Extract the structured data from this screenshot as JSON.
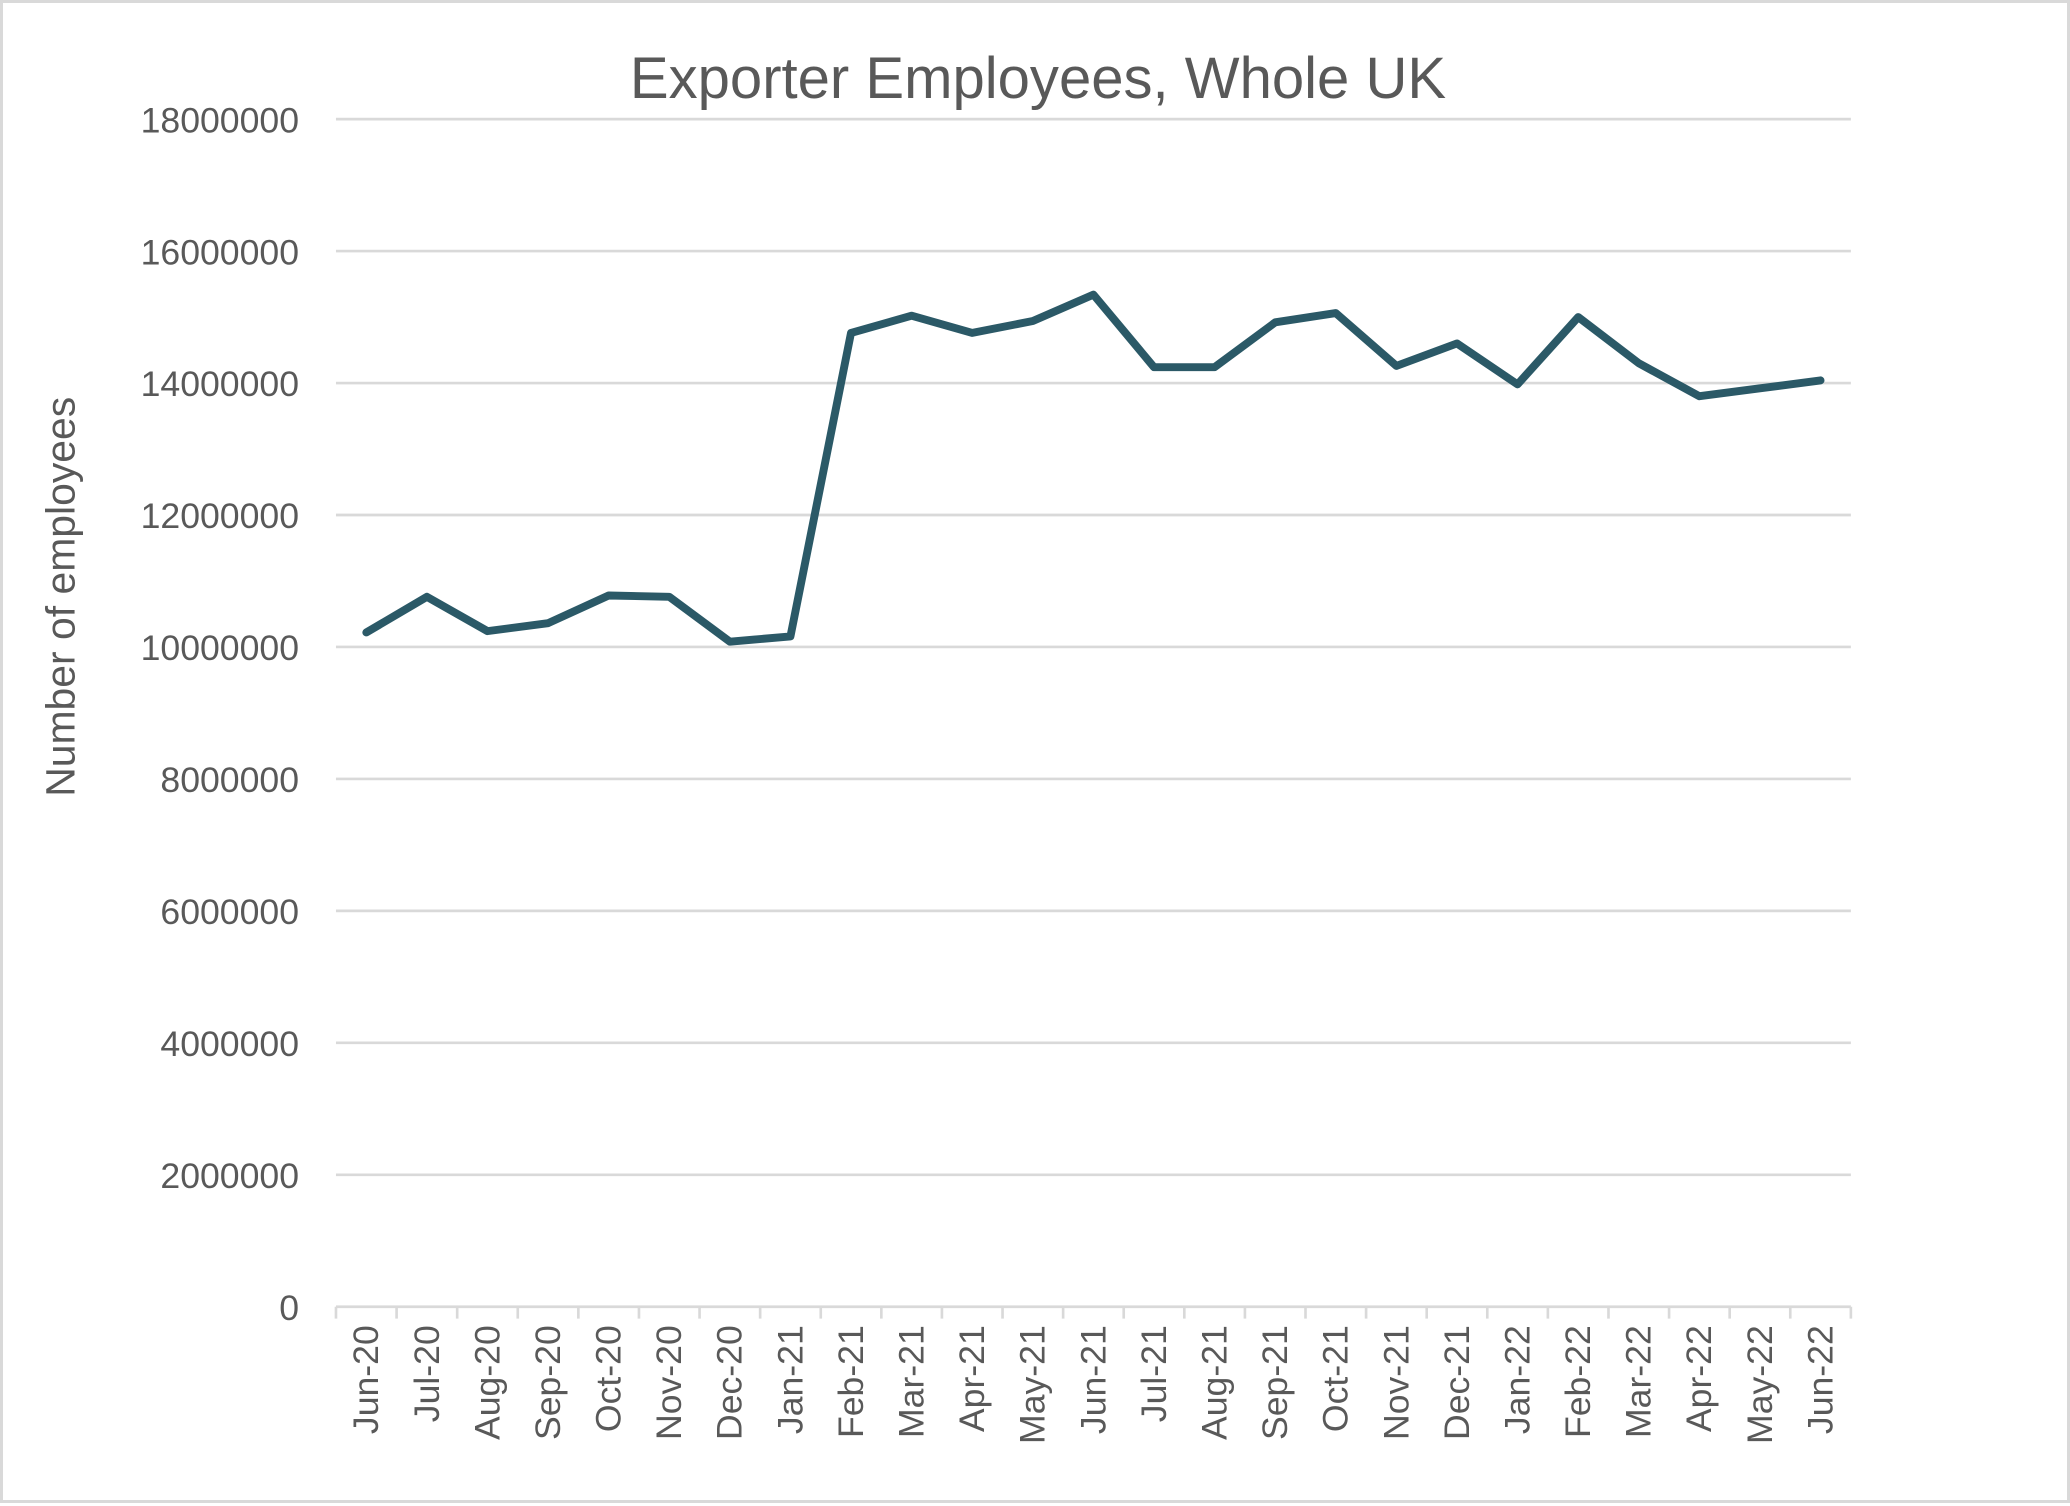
{
  "chart_data": {
    "type": "line",
    "title": "Exporter Employees, Whole UK",
    "xlabel": "",
    "ylabel": "Number of employees",
    "ylim": [
      0,
      18000000
    ],
    "yticks": [
      0,
      2000000,
      4000000,
      6000000,
      8000000,
      10000000,
      12000000,
      14000000,
      16000000,
      18000000
    ],
    "ytick_labels": [
      "0",
      "2000000",
      "4000000",
      "6000000",
      "8000000",
      "10000000",
      "12000000",
      "14000000",
      "16000000",
      "18000000"
    ],
    "grid": true,
    "legend": null,
    "categories": [
      "Jun-20",
      "Jul-20",
      "Aug-20",
      "Sep-20",
      "Oct-20",
      "Nov-20",
      "Dec-20",
      "Jan-21",
      "Feb-21",
      "Mar-21",
      "Apr-21",
      "May-21",
      "Jun-21",
      "Jul-21",
      "Aug-21",
      "Sep-21",
      "Oct-21",
      "Nov-21",
      "Dec-21",
      "Jan-22",
      "Feb-22",
      "Mar-22",
      "Apr-22",
      "May-22",
      "Jun-22"
    ],
    "series": [
      {
        "name": "Exporter Employees",
        "color": "#2B5967",
        "values": [
          10220000,
          10760000,
          10240000,
          10360000,
          10780000,
          10760000,
          10080000,
          10160000,
          14760000,
          15020000,
          14760000,
          14940000,
          15340000,
          14240000,
          14240000,
          14920000,
          15060000,
          14260000,
          14600000,
          13980000,
          15000000,
          14300000,
          13800000,
          13920000,
          14040000
        ]
      }
    ]
  },
  "colors": {
    "line": "#2B5967",
    "grid": "#d9d9d9",
    "text": "#595959",
    "border": "#d9d9d9"
  }
}
